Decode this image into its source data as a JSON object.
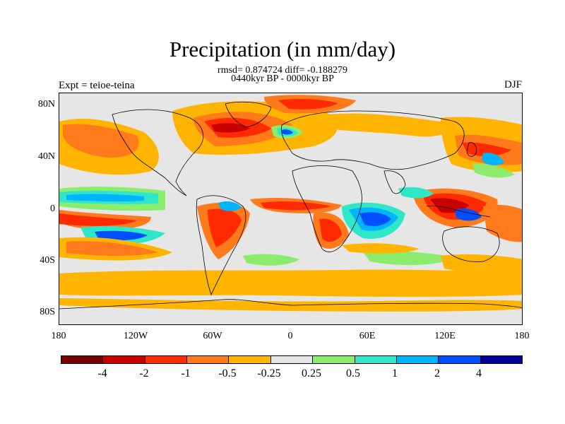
{
  "title": "Precipitation (in mm/day)",
  "stats": "rmsd= 0.874724 diff= -0.188279",
  "period": "0440kyr BP - 0000kyr BP",
  "experiment": "Expt = teioe-teina",
  "season": "DJF",
  "y_ticks": [
    "80N",
    "40N",
    "0",
    "40S",
    "80S"
  ],
  "x_ticks": [
    "180",
    "120W",
    "60W",
    "0",
    "60E",
    "120E",
    "180"
  ],
  "colorbar": {
    "colors": [
      "#7a0000",
      "#c80000",
      "#ff2a00",
      "#ff7a1a",
      "#ffb400",
      "#e6e6e6",
      "#8cec6e",
      "#2ee6c8",
      "#00b4ff",
      "#0050ff",
      "#000096"
    ],
    "labels": [
      "-4",
      "-2",
      "-1",
      "-0.5",
      "-0.25",
      "0.25",
      "0.5",
      "1",
      "2",
      "4"
    ]
  },
  "palette": {
    "background": "#e6e6e6",
    "dry_light": "#ffb400",
    "dry_mid": "#ff7a1a",
    "dry_strong": "#ff2a00",
    "dry_heavy": "#c80000",
    "dry_extreme": "#7a0000",
    "wet_light": "#8cec6e",
    "wet_mid": "#2ee6c8",
    "wet_strong": "#00b4ff",
    "wet_heavy": "#0050ff",
    "wet_extreme": "#000096"
  }
}
